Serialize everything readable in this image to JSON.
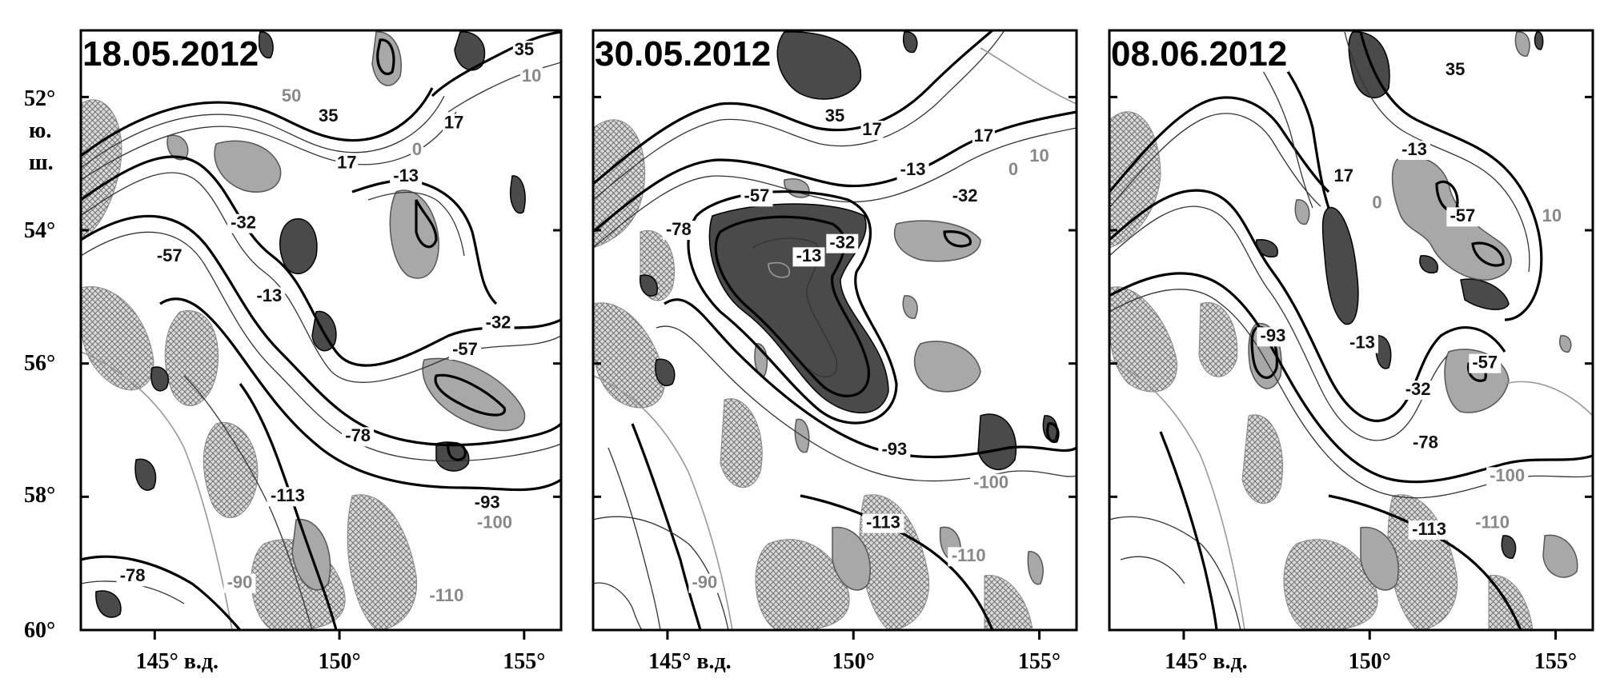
{
  "figure": {
    "panels": [
      {
        "date": "18.05.2012",
        "contour_labels": [
          {
            "text": "35",
            "lon": 155.0,
            "lat": 51.3,
            "style": "dark"
          },
          {
            "text": "50",
            "lon": 148.7,
            "lat": 52.0,
            "style": "grey"
          },
          {
            "text": "35",
            "lon": 149.7,
            "lat": 52.3,
            "style": "dark"
          },
          {
            "text": "17",
            "lon": 153.1,
            "lat": 52.4,
            "style": "dark"
          },
          {
            "text": "0",
            "lon": 152.1,
            "lat": 52.8,
            "style": "grey"
          },
          {
            "text": "10",
            "lon": 155.2,
            "lat": 51.7,
            "style": "grey"
          },
          {
            "text": "17",
            "lon": 150.2,
            "lat": 53.0,
            "style": "dark"
          },
          {
            "text": "-13",
            "lon": 151.8,
            "lat": 53.2,
            "style": "dark"
          },
          {
            "text": "-32",
            "lon": 147.4,
            "lat": 53.9,
            "style": "dark"
          },
          {
            "text": "-57",
            "lon": 145.4,
            "lat": 54.4,
            "style": "dark"
          },
          {
            "text": "-13",
            "lon": 148.1,
            "lat": 55.0,
            "style": "dark"
          },
          {
            "text": "-32",
            "lon": 154.3,
            "lat": 55.4,
            "style": "dark"
          },
          {
            "text": "-57",
            "lon": 153.4,
            "lat": 55.8,
            "style": "dark"
          },
          {
            "text": "-78",
            "lon": 150.5,
            "lat": 57.1,
            "style": "dark"
          },
          {
            "text": "-113",
            "lon": 148.6,
            "lat": 58.0,
            "style": "dark"
          },
          {
            "text": "-93",
            "lon": 154.0,
            "lat": 58.1,
            "style": "dark"
          },
          {
            "text": "-100",
            "lon": 154.2,
            "lat": 58.4,
            "style": "grey"
          },
          {
            "text": "-78",
            "lon": 144.4,
            "lat": 59.2,
            "style": "dark"
          },
          {
            "text": "-90",
            "lon": 147.3,
            "lat": 59.3,
            "style": "grey"
          },
          {
            "text": "-110",
            "lon": 152.9,
            "lat": 59.5,
            "style": "grey"
          }
        ]
      },
      {
        "date": "30.05.2012",
        "contour_labels": [
          {
            "text": "35",
            "lon": 149.5,
            "lat": 52.3,
            "style": "dark"
          },
          {
            "text": "17",
            "lon": 150.5,
            "lat": 52.5,
            "style": "dark"
          },
          {
            "text": "17",
            "lon": 153.5,
            "lat": 52.6,
            "style": "dark"
          },
          {
            "text": "10",
            "lon": 155.0,
            "lat": 52.9,
            "style": "grey"
          },
          {
            "text": "-13",
            "lon": 151.6,
            "lat": 53.1,
            "style": "dark"
          },
          {
            "text": "0",
            "lon": 154.3,
            "lat": 53.1,
            "style": "grey"
          },
          {
            "text": "-57",
            "lon": 147.4,
            "lat": 53.5,
            "style": "dark"
          },
          {
            "text": "-32",
            "lon": 153.0,
            "lat": 53.5,
            "style": "dark"
          },
          {
            "text": "-78",
            "lon": 145.3,
            "lat": 54.0,
            "style": "dark"
          },
          {
            "text": "-32",
            "lon": 149.7,
            "lat": 54.2,
            "style": "dark"
          },
          {
            "text": "-13",
            "lon": 148.8,
            "lat": 54.4,
            "style": "dark"
          },
          {
            "text": "-93",
            "lon": 151.1,
            "lat": 57.3,
            "style": "dark"
          },
          {
            "text": "-100",
            "lon": 153.7,
            "lat": 57.8,
            "style": "grey"
          },
          {
            "text": "-113",
            "lon": 150.8,
            "lat": 58.4,
            "style": "dark"
          },
          {
            "text": "-110",
            "lon": 153.1,
            "lat": 58.9,
            "style": "grey"
          },
          {
            "text": "-90",
            "lon": 146.0,
            "lat": 59.3,
            "style": "grey"
          }
        ]
      },
      {
        "date": "08.06.2012",
        "contour_labels": [
          {
            "text": "35",
            "lon": 152.3,
            "lat": 51.6,
            "style": "dark"
          },
          {
            "text": "-13",
            "lon": 151.2,
            "lat": 52.8,
            "style": "dark"
          },
          {
            "text": "17",
            "lon": 149.3,
            "lat": 53.2,
            "style": "dark"
          },
          {
            "text": "0",
            "lon": 150.2,
            "lat": 53.6,
            "style": "grey"
          },
          {
            "text": "-57",
            "lon": 152.5,
            "lat": 53.8,
            "style": "dark"
          },
          {
            "text": "10",
            "lon": 154.9,
            "lat": 53.8,
            "style": "grey"
          },
          {
            "text": "-93",
            "lon": 147.4,
            "lat": 55.6,
            "style": "dark"
          },
          {
            "text": "-13",
            "lon": 149.8,
            "lat": 55.7,
            "style": "dark"
          },
          {
            "text": "-57",
            "lon": 153.1,
            "lat": 56.0,
            "style": "dark"
          },
          {
            "text": "-32",
            "lon": 151.3,
            "lat": 56.4,
            "style": "dark"
          },
          {
            "text": "-78",
            "lon": 151.5,
            "lat": 57.2,
            "style": "dark"
          },
          {
            "text": "-100",
            "lon": 153.7,
            "lat": 57.7,
            "style": "grey"
          },
          {
            "text": "-113",
            "lon": 151.6,
            "lat": 58.5,
            "style": "dark"
          },
          {
            "text": "-110",
            "lon": 153.3,
            "lat": 58.4,
            "style": "grey"
          }
        ]
      }
    ],
    "lat_axis": {
      "ticks": [
        {
          "lat": 52,
          "label": "52°"
        },
        {
          "lat": 54,
          "label": "54°"
        },
        {
          "lat": 56,
          "label": "56°"
        },
        {
          "lat": 58,
          "label": "58°"
        },
        {
          "lat": 60,
          "label": "60°"
        }
      ],
      "unit_line1": "ю.",
      "unit_line2": "ш."
    },
    "lon_axis": {
      "ticks": [
        {
          "lon": 145,
          "label": "145° в.д."
        },
        {
          "lon": 150,
          "label": "150°"
        },
        {
          "lon": 155,
          "label": "155°"
        }
      ]
    },
    "lon_range": [
      143.0,
      156.0
    ],
    "lat_range": [
      51.0,
      60.0
    ]
  }
}
